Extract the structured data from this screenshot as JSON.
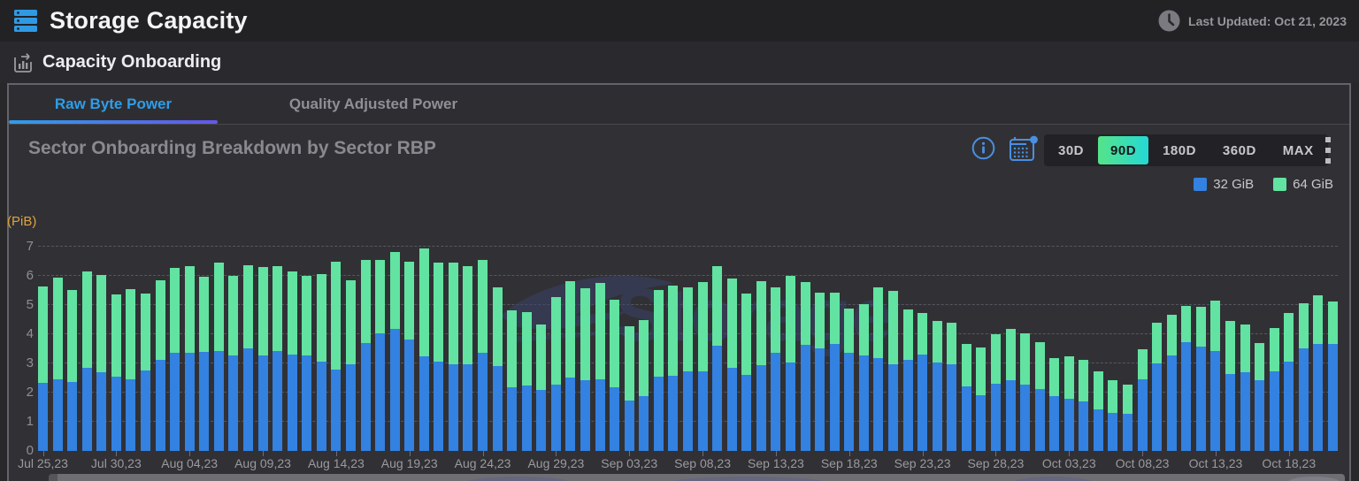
{
  "header": {
    "title": "Storage Capacity",
    "last_updated": "Last Updated: Oct 21, 2023"
  },
  "section": {
    "title": "Capacity Onboarding"
  },
  "tabs": [
    {
      "label": "Raw Byte Power",
      "active": true
    },
    {
      "label": "Quality Adjusted Power",
      "active": false
    }
  ],
  "controls": {
    "ranges": [
      "30D",
      "90D",
      "180D",
      "360D",
      "MAX"
    ],
    "active_range": "90D",
    "icons": [
      "info-icon",
      "calendar-icon",
      "kebab-menu-icon"
    ]
  },
  "colors": {
    "bar_blue": "#3381e0",
    "bar_green": "#62e3a1",
    "accent_icon_blue": "#4a8fe2",
    "active_range_gradient": [
      "#55e389",
      "#25d9d4"
    ],
    "tab_underline_gradient": [
      "#2f9de8",
      "#6557e8"
    ],
    "axis_name_orange": "#dfa23e",
    "header_icon_blue": "#2f9ae4"
  },
  "watermark": "Storage",
  "chart_data": {
    "type": "bar",
    "stacked": true,
    "title": "Sector Onboarding Breakdown by Sector RBP",
    "y_axis_name": "(PiB)",
    "ylim": [
      0,
      7
    ],
    "yticks": [
      0,
      1,
      2,
      3,
      4,
      5,
      6,
      7
    ],
    "grid": "dashed-horizontal",
    "legend_position": "top-right",
    "n_bars": 89,
    "x_label_every": 5,
    "x_labels": [
      "Jul 25,23",
      "Jul 30,23",
      "Aug 04,23",
      "Aug 09,23",
      "Aug 14,23",
      "Aug 19,23",
      "Aug 24,23",
      "Aug 29,23",
      "Sep 03,23",
      "Sep 08,23",
      "Sep 13,23",
      "Sep 18,23",
      "Sep 23,23",
      "Sep 28,23",
      "Oct 03,23",
      "Oct 08,23",
      "Oct 13,23",
      "Oct 18,23"
    ],
    "series": [
      {
        "name": "32 GiB",
        "color": "#3381e0",
        "values": [
          2.33,
          2.45,
          2.36,
          2.84,
          2.7,
          2.55,
          2.47,
          2.76,
          3.11,
          3.37,
          3.37,
          3.4,
          3.41,
          3.28,
          3.53,
          3.28,
          3.43,
          3.31,
          3.27,
          3.05,
          2.79,
          2.97,
          3.69,
          4.04,
          4.19,
          3.83,
          3.25,
          3.07,
          2.97,
          2.98,
          3.35,
          2.9,
          2.17,
          2.25,
          2.09,
          2.27,
          2.51,
          2.41,
          2.46,
          2.17,
          1.72,
          1.87,
          2.56,
          2.57,
          2.72,
          2.72,
          3.61,
          2.84,
          2.62,
          2.94,
          3.37,
          3.03,
          3.64,
          3.51,
          3.66,
          3.35,
          3.27,
          3.17,
          2.97,
          3.13,
          3.3,
          3.03,
          2.98,
          2.21,
          1.92,
          2.31,
          2.41,
          2.28,
          2.11,
          1.87,
          1.8,
          1.7,
          1.43,
          1.29,
          1.26,
          2.45,
          3.0,
          3.27,
          3.74,
          3.58,
          3.43,
          2.64,
          2.69,
          2.43,
          2.72,
          3.07,
          3.51,
          3.68,
          3.66
        ]
      },
      {
        "name": "64 GiB",
        "color": "#62e3a1",
        "values": [
          3.3,
          3.48,
          3.16,
          3.31,
          3.33,
          2.81,
          3.07,
          2.64,
          2.75,
          2.9,
          2.97,
          2.58,
          3.04,
          2.73,
          2.82,
          3.02,
          2.89,
          2.83,
          2.73,
          3.01,
          3.71,
          2.88,
          2.86,
          2.51,
          2.62,
          2.67,
          3.7,
          3.38,
          3.48,
          3.36,
          3.19,
          2.72,
          2.64,
          2.52,
          2.23,
          3.01,
          3.32,
          3.17,
          3.3,
          3.02,
          2.55,
          2.61,
          2.96,
          3.11,
          2.9,
          3.06,
          2.71,
          3.07,
          2.76,
          2.89,
          2.25,
          2.98,
          2.15,
          1.91,
          1.76,
          1.52,
          1.77,
          2.43,
          2.51,
          1.71,
          1.43,
          1.43,
          1.4,
          1.45,
          1.62,
          1.68,
          1.76,
          1.76,
          1.62,
          1.3,
          1.43,
          1.43,
          1.31,
          1.15,
          1.02,
          1.03,
          1.4,
          1.39,
          1.23,
          1.36,
          1.71,
          1.82,
          1.63,
          1.28,
          1.5,
          1.66,
          1.56,
          1.64,
          1.45
        ]
      }
    ]
  }
}
